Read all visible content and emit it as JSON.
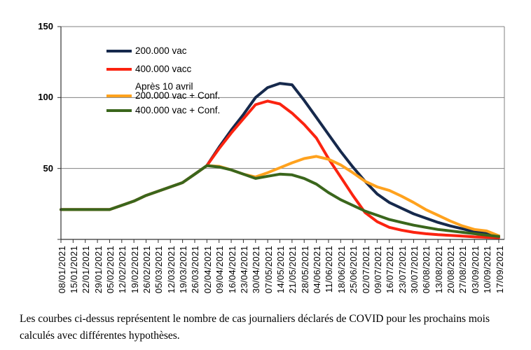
{
  "chart_data": {
    "type": "line",
    "title": "",
    "xlabel": "",
    "ylabel": "",
    "ylim": [
      0,
      150
    ],
    "y_ticks": [
      150,
      100,
      50
    ],
    "grid": "horizontal",
    "legend_position": "inside-top-left",
    "x_tick_labels": [
      "08/01/2021",
      "15/01/2021",
      "22/01/2021",
      "29/01/2021",
      "05/02/2021",
      "12/02/2021",
      "19/02/2021",
      "26/02/2021",
      "05/03/2021",
      "12/03/2021",
      "19/03/2021",
      "26/03/2021",
      "02/04/2021",
      "09/04/2021",
      "16/04/2021",
      "23/04/2021",
      "30/04/2021",
      "07/05/2021",
      "14/05/2021",
      "21/05/2021",
      "28/05/2021",
      "04/06/2021",
      "11/06/2021",
      "18/06/2021",
      "25/06/2021",
      "02/07/2021",
      "09/07/2021",
      "16/07/2021",
      "23/07/2021",
      "30/07/2021",
      "06/08/2021",
      "13/08/2021",
      "20/08/2021",
      "27/08/2021",
      "03/09/2021",
      "10/09/2021",
      "17/09/2021"
    ],
    "series": [
      {
        "name": "200.000 vac",
        "color": "#16294C",
        "values": [
          21,
          21,
          21,
          21,
          21,
          24,
          27,
          31,
          34,
          37,
          40,
          46,
          52,
          65,
          77,
          88,
          100,
          107,
          110,
          109,
          98,
          86,
          74,
          62,
          51,
          41,
          32,
          26,
          22,
          18,
          15,
          12,
          9.5,
          7.5,
          5.5,
          4,
          2.5
        ]
      },
      {
        "name": "400.000 vacc",
        "name_line2": "Après 10 avril",
        "color": "#FB2310",
        "values": [
          21,
          21,
          21,
          21,
          21,
          24,
          27,
          31,
          34,
          37,
          40,
          46,
          52,
          64,
          75,
          85,
          95,
          97.5,
          95.5,
          89,
          81,
          71.5,
          57,
          44,
          31,
          19,
          12.5,
          8.5,
          6.5,
          5,
          4,
          3.3,
          2.8,
          2.3,
          1.8,
          1.5,
          1.2
        ]
      },
      {
        "name": "200.000 vac + Conf.",
        "color": "#FFA21E",
        "values": [
          21,
          21,
          21,
          21,
          21,
          24,
          27,
          31,
          34,
          37,
          40,
          46,
          52,
          51.5,
          49,
          46,
          44,
          47,
          50.5,
          54,
          57,
          58.5,
          56.5,
          52.5,
          47,
          41,
          37,
          34.5,
          30.5,
          26,
          21,
          17,
          13,
          9.5,
          7,
          6,
          2.5
        ]
      },
      {
        "name": "400.000 vac + Conf.",
        "color": "#3A661C",
        "values": [
          21,
          21,
          21,
          21,
          21,
          24,
          27,
          31,
          34,
          37,
          40,
          46,
          52,
          51,
          49,
          46,
          43,
          44.5,
          46,
          45.5,
          43,
          39,
          33,
          28,
          24,
          20,
          17,
          14,
          12,
          10,
          8.5,
          7,
          6,
          5,
          4,
          3,
          2
        ]
      }
    ],
    "axis_color": "#333333",
    "gridline_color": "#808080"
  },
  "caption": {
    "line1": "Les courbes ci-dessus représentent le nombre de cas journaliers déclarés de COVID pour les prochains mois",
    "line2": "calculés avec différentes hypothèses."
  }
}
